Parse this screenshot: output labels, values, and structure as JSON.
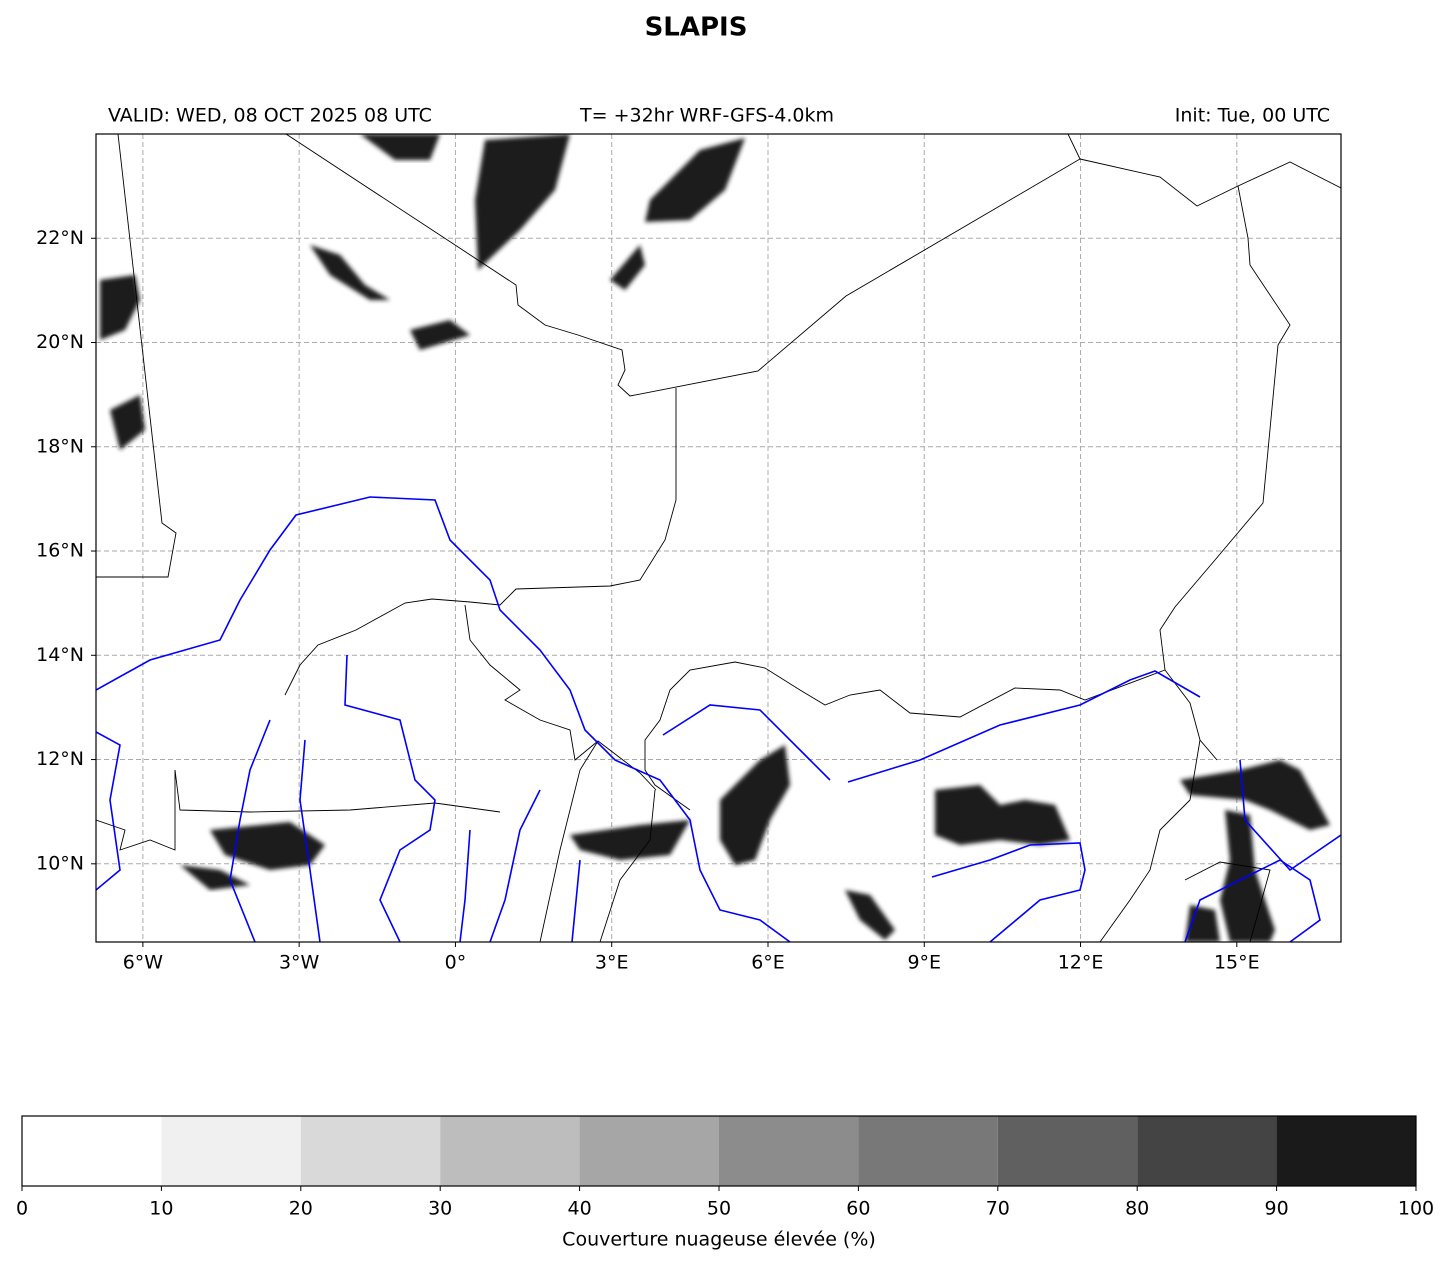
{
  "title": "SLAPIS",
  "header": {
    "left": "VALID: WED, 08 OCT 2025 08 UTC",
    "center": "T= +32hr WRF-GFS-4.0km",
    "right": "Init: Tue, 00 UTC"
  },
  "map": {
    "lonlim": [
      -6.9,
      17
    ],
    "latlim": [
      8.5,
      24
    ],
    "lonticks": [
      {
        "value": -6,
        "label": "6°W"
      },
      {
        "value": -3,
        "label": "3°W"
      },
      {
        "value": 0,
        "label": "0°"
      },
      {
        "value": 3,
        "label": "3°E"
      },
      {
        "value": 6,
        "label": "6°E"
      },
      {
        "value": 9,
        "label": "9°E"
      },
      {
        "value": 12,
        "label": "12°E"
      },
      {
        "value": 15,
        "label": "15°E"
      }
    ],
    "latticks": [
      {
        "value": 10,
        "label": "10°N"
      },
      {
        "value": 12,
        "label": "12°N"
      },
      {
        "value": 14,
        "label": "14°N"
      },
      {
        "value": 16,
        "label": "16°N"
      },
      {
        "value": 18,
        "label": "18°N"
      },
      {
        "value": 20,
        "label": "20°N"
      },
      {
        "value": 22,
        "label": "22°N"
      }
    ],
    "grid": true
  },
  "colorbar": {
    "ticks": [
      0,
      10,
      20,
      30,
      40,
      50,
      60,
      70,
      80,
      90,
      100
    ],
    "colors": [
      "#ffffff",
      "#f0f0f0",
      "#d9d9d9",
      "#bdbdbd",
      "#a6a6a6",
      "#8c8c8c",
      "#787878",
      "#606060",
      "#444444",
      "#1a1a1a"
    ],
    "label": "Couverture nuageuse élevée (%)"
  }
}
